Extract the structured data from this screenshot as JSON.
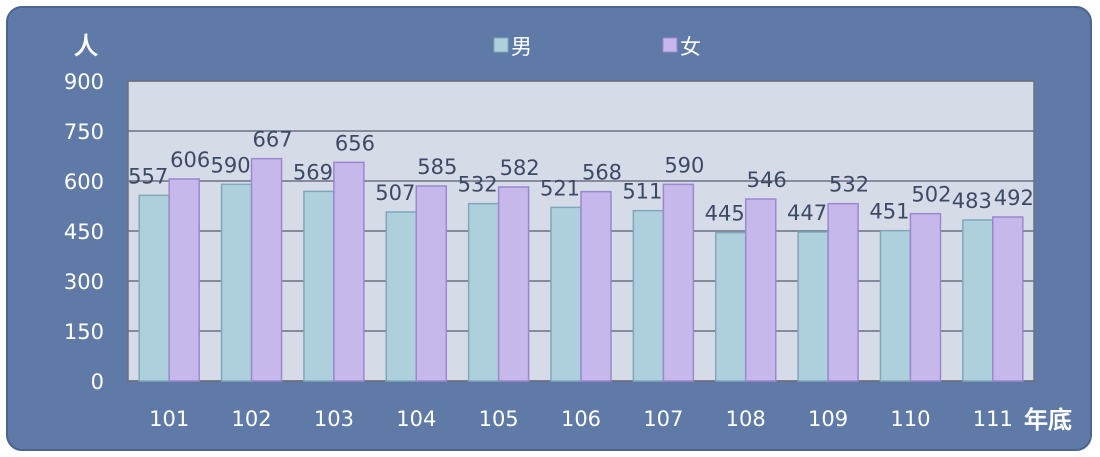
{
  "chart_data": {
    "type": "bar",
    "y_unit_label": "人",
    "x_unit_label": "年底",
    "categories": [
      "101",
      "102",
      "103",
      "104",
      "105",
      "106",
      "107",
      "108",
      "109",
      "110",
      "111"
    ],
    "series": [
      {
        "name": "男",
        "color": "#aecfdc",
        "edge": "#7fa8ba",
        "values": [
          557,
          590,
          569,
          507,
          532,
          521,
          511,
          445,
          447,
          451,
          483
        ]
      },
      {
        "name": "女",
        "color": "#c6b8ea",
        "edge": "#9a88d0",
        "values": [
          606,
          667,
          656,
          585,
          582,
          568,
          590,
          546,
          532,
          502,
          492
        ]
      }
    ],
    "ylim": [
      0,
      900
    ],
    "yticks": [
      "0",
      "150",
      "300",
      "450",
      "600",
      "750",
      "900"
    ],
    "grid": true,
    "legend_position": "top-center",
    "colors": {
      "panel": "#5f7aa6",
      "plot_area": "#d6dbe8",
      "gridline": "#6b6f80"
    }
  }
}
